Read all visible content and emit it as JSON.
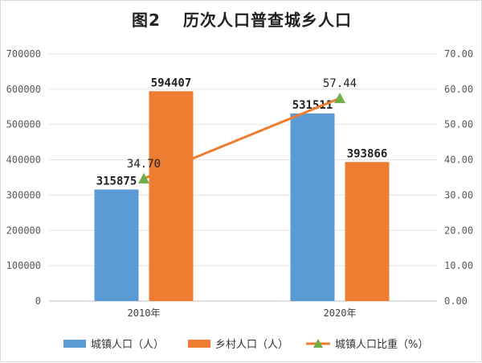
{
  "title_prefix": "图2",
  "title_main": "历次人口普查城乡人口",
  "chart_data": {
    "type": "bar",
    "categories": [
      "2010年",
      "2020年"
    ],
    "series": [
      {
        "name": "城镇人口（人）",
        "kind": "bar",
        "axis": "left",
        "color": "#5b9bd5",
        "values": [
          315875,
          531511
        ]
      },
      {
        "name": "乡村人口（人）",
        "kind": "bar",
        "axis": "left",
        "color": "#ed7d31",
        "values": [
          594407,
          393866
        ]
      },
      {
        "name": "城镇人口比重（%）",
        "kind": "line",
        "axis": "right",
        "color": "#ed7d31",
        "marker_color": "#70ad47",
        "values": [
          34.7,
          57.44
        ]
      }
    ],
    "data_labels": {
      "bars": [
        [
          "315875",
          "531511"
        ],
        [
          "594407",
          "393866"
        ]
      ],
      "line": [
        "34.70",
        "57.44"
      ]
    },
    "y_left": {
      "min": 0,
      "max": 700000,
      "step": 100000,
      "ticks": [
        "0",
        "100000",
        "200000",
        "300000",
        "400000",
        "500000",
        "600000",
        "700000"
      ]
    },
    "y_right": {
      "min": 0,
      "max": 70,
      "step": 10,
      "ticks": [
        "0.00",
        "10.00",
        "20.00",
        "30.00",
        "40.00",
        "50.00",
        "60.00",
        "70.00"
      ]
    },
    "grid": true,
    "legend_position": "bottom"
  }
}
